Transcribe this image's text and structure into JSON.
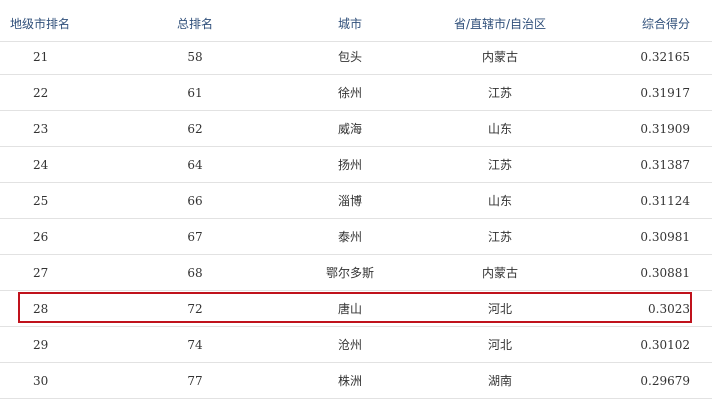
{
  "table": {
    "headers": [
      "地级市排名",
      "总排名",
      "城市",
      "省/直辖市/自治区",
      "综合得分"
    ],
    "rows": [
      [
        "21",
        "58",
        "包头",
        "内蒙古",
        "0.32165"
      ],
      [
        "22",
        "61",
        "徐州",
        "江苏",
        "0.31917"
      ],
      [
        "23",
        "62",
        "威海",
        "山东",
        "0.31909"
      ],
      [
        "24",
        "64",
        "扬州",
        "江苏",
        "0.31387"
      ],
      [
        "25",
        "66",
        "淄博",
        "山东",
        "0.31124"
      ],
      [
        "26",
        "67",
        "泰州",
        "江苏",
        "0.30981"
      ],
      [
        "27",
        "68",
        "鄂尔多斯",
        "内蒙古",
        "0.30881"
      ],
      [
        "28",
        "72",
        "唐山",
        "河北",
        "0.3023"
      ],
      [
        "29",
        "74",
        "沧州",
        "河北",
        "0.30102"
      ],
      [
        "30",
        "77",
        "株洲",
        "湖南",
        "0.29679"
      ]
    ],
    "highlighted_row": 8,
    "highlight_color": "#c0121c",
    "header_color": "#2f4f7a"
  }
}
